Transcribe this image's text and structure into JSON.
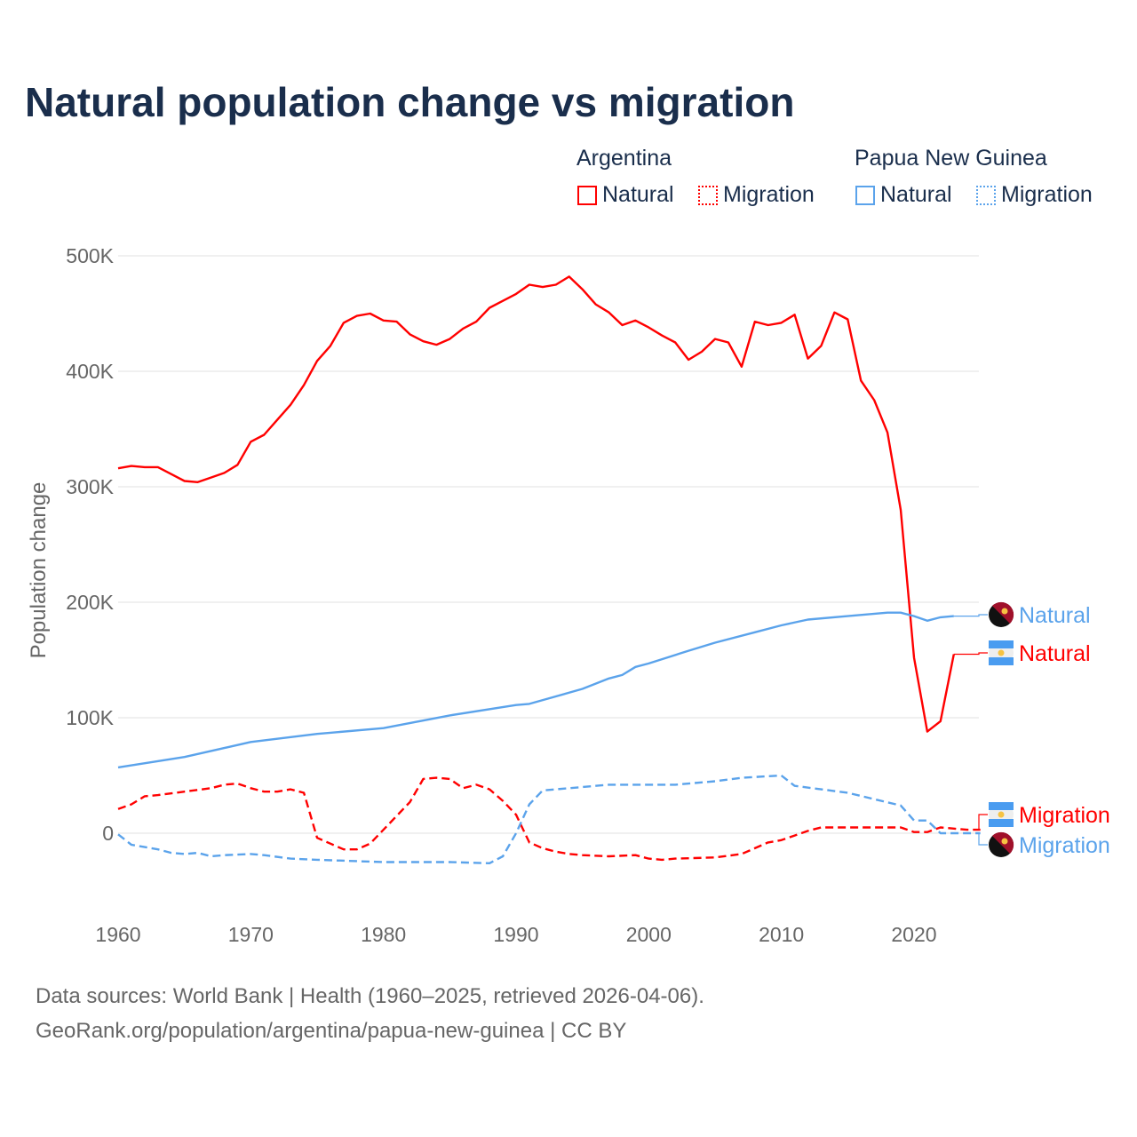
{
  "chart_data": {
    "type": "line",
    "title": "Natural population change vs migration",
    "ylabel": "Population change",
    "xlabel": "",
    "xlim": [
      1960,
      2025
    ],
    "ylim": [
      -70000,
      500000
    ],
    "x_ticks": [
      "1960",
      "1970",
      "1980",
      "1990",
      "2000",
      "2010",
      "2020"
    ],
    "y_ticks": [
      {
        "v": 0,
        "label": "0"
      },
      {
        "v": 100000,
        "label": "100K"
      },
      {
        "v": 200000,
        "label": "200K"
      },
      {
        "v": 300000,
        "label": "300K"
      },
      {
        "v": 400000,
        "label": "400K"
      },
      {
        "v": 500000,
        "label": "500K"
      }
    ],
    "legend": {
      "groups": [
        {
          "country": "Argentina",
          "items": [
            "Natural",
            "Migration"
          ],
          "color": "#ff0000"
        },
        {
          "country": "Papua New Guinea",
          "items": [
            "Natural",
            "Migration"
          ],
          "color": "#5ba3eb"
        }
      ]
    },
    "series": [
      {
        "name": "Argentina Natural",
        "label": "Natural",
        "color": "#ff0000",
        "dash": false,
        "x": [
          1960,
          1961,
          1962,
          1963,
          1964,
          1965,
          1966,
          1967,
          1968,
          1969,
          1970,
          1971,
          1972,
          1973,
          1974,
          1975,
          1976,
          1977,
          1978,
          1979,
          1980,
          1981,
          1982,
          1983,
          1984,
          1985,
          1986,
          1987,
          1988,
          1989,
          1990,
          1991,
          1992,
          1993,
          1994,
          1995,
          1996,
          1997,
          1998,
          1999,
          2000,
          2001,
          2002,
          2003,
          2004,
          2005,
          2006,
          2007,
          2008,
          2009,
          2010,
          2011,
          2012,
          2013,
          2014,
          2015,
          2016,
          2017,
          2018,
          2019,
          2020,
          2021,
          2022,
          2023
        ],
        "y": [
          316,
          318,
          317,
          317,
          311,
          305,
          304,
          308,
          312,
          319,
          339,
          345,
          358,
          371,
          388,
          409,
          422,
          442,
          448,
          450,
          444,
          443,
          432,
          426,
          423,
          428,
          437,
          443,
          455,
          461,
          467,
          475,
          473,
          475,
          482,
          471,
          458,
          451,
          440,
          444,
          438,
          431,
          425,
          410,
          417,
          428,
          425,
          404,
          443,
          440,
          442,
          449,
          411,
          422,
          451,
          445,
          392,
          375,
          347,
          280,
          152,
          88,
          97,
          155
        ]
      },
      {
        "name": "Argentina Migration",
        "label": "Migration",
        "color": "#ff0000",
        "dash": true,
        "x": [
          1960,
          1961,
          1962,
          1963,
          1965,
          1967,
          1968,
          1969,
          1970,
          1971,
          1972,
          1973,
          1974,
          1975,
          1976,
          1977,
          1978,
          1979,
          1980,
          1981,
          1982,
          1983,
          1984,
          1985,
          1986,
          1987,
          1988,
          1989,
          1990,
          1991,
          1992,
          1993,
          1994,
          1995,
          1997,
          1999,
          2000,
          2001,
          2002,
          2005,
          2007,
          2008,
          2009,
          2010,
          2011,
          2012,
          2013,
          2014,
          2016,
          2017,
          2018,
          2019,
          2020,
          2021,
          2022,
          2023,
          2024,
          2025
        ],
        "y": [
          21,
          25,
          32,
          33,
          36,
          39,
          42,
          43,
          39,
          36,
          36,
          38,
          35,
          -4,
          -9,
          -14,
          -14,
          -9,
          3,
          15,
          27,
          47,
          48,
          47,
          39,
          42,
          38,
          28,
          16,
          -8,
          -13,
          -16,
          -18,
          -19,
          -20,
          -19,
          -22,
          -23,
          -22,
          -21,
          -18,
          -13,
          -8,
          -6,
          -2,
          2,
          5,
          5,
          5,
          5,
          5,
          5,
          1,
          1,
          5,
          4,
          3,
          3
        ]
      },
      {
        "name": "Papua New Guinea Natural",
        "label": "Natural",
        "color": "#5ba3eb",
        "dash": false,
        "x": [
          1960,
          1965,
          1970,
          1975,
          1980,
          1985,
          1990,
          1991,
          1995,
          1997,
          1998,
          1999,
          2000,
          2003,
          2005,
          2008,
          2010,
          2012,
          2015,
          2018,
          2019,
          2020,
          2021,
          2022,
          2023
        ],
        "y": [
          57,
          66,
          79,
          86,
          91,
          102,
          111,
          112,
          125,
          134,
          137,
          144,
          147,
          158,
          165,
          174,
          180,
          185,
          188,
          191,
          191,
          188,
          184,
          187,
          188
        ]
      },
      {
        "name": "Papua New Guinea Migration",
        "label": "Migration",
        "color": "#5ba3eb",
        "dash": true,
        "x": [
          1960,
          1961,
          1962,
          1963,
          1964,
          1965,
          1966,
          1967,
          1968,
          1970,
          1971,
          1973,
          1975,
          1980,
          1985,
          1988,
          1989,
          1990,
          1991,
          1992,
          1995,
          1997,
          1999,
          2000,
          2002,
          2005,
          2007,
          2010,
          2011,
          2015,
          2019,
          2020,
          2021,
          2022,
          2025
        ],
        "y": [
          -1,
          -10,
          -12,
          -14,
          -17,
          -18,
          -17,
          -20,
          -19,
          -18,
          -19,
          -22,
          -23,
          -25,
          -25,
          -26,
          -20,
          0,
          25,
          37,
          40,
          42,
          42,
          42,
          42,
          45,
          48,
          50,
          41,
          35,
          24,
          11,
          11,
          0,
          0
        ]
      }
    ],
    "y_unit_multiplier": 1000
  },
  "footer": {
    "line1": "Data sources: World Bank | Health (1960–2025, retrieved 2026-04-06).",
    "line2": "GeoRank.org/population/argentina/papua-new-guinea | CC BY"
  }
}
